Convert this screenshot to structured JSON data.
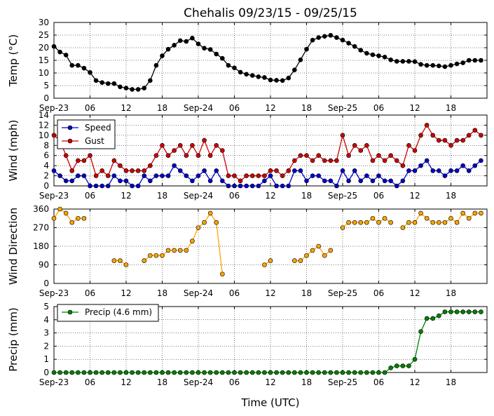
{
  "title": "Chehalis 09/23/15 - 09/25/15",
  "xlabel": "Time (UTC)",
  "x_tick_labels": [
    "Sep-23",
    "06",
    "12",
    "18",
    "Sep-24",
    "06",
    "12",
    "18",
    "Sep-25",
    "06",
    "12",
    "18"
  ],
  "chart_data": [
    {
      "type": "line",
      "ylabel": "Temp (°C)",
      "ylim": [
        0,
        30
      ],
      "yticks": [
        0,
        5,
        10,
        15,
        20,
        25,
        30
      ],
      "x_unit": "hours since Sep-23 00:00 UTC",
      "x_step_hours": 1,
      "grid": true,
      "series": [
        {
          "color": "#000000",
          "values": [
            20.5,
            18.3,
            17.1,
            13.0,
            13.0,
            11.9,
            10.2,
            7.0,
            6.2,
            5.8,
            5.8,
            4.5,
            4.0,
            3.5,
            3.5,
            4.0,
            7.0,
            13.0,
            16.8,
            19.4,
            21.0,
            22.8,
            22.5,
            23.8,
            21.5,
            19.8,
            19.3,
            17.5,
            15.8,
            13.0,
            12.0,
            10.3,
            9.5,
            9.0,
            8.5,
            8.2,
            7.2,
            7.1,
            7.0,
            8.0,
            11.2,
            15.2,
            19.4,
            23.0,
            24.0,
            24.5,
            24.9,
            24.0,
            23.0,
            21.8,
            20.5,
            19.0,
            17.8,
            17.2,
            16.8,
            16.3,
            15.2,
            14.6,
            14.6,
            14.6,
            14.5,
            13.4,
            13.0,
            13.0,
            12.8,
            12.5,
            13.0,
            13.6,
            14.0,
            15.0,
            15.0,
            15.0
          ]
        }
      ]
    },
    {
      "type": "line",
      "ylabel": "Wind (mph)",
      "ylim": [
        0,
        14
      ],
      "yticks": [
        0,
        2,
        4,
        6,
        8,
        10,
        12,
        14
      ],
      "x_unit": "hours since Sep-23 00:00 UTC",
      "x_step_hours": 1,
      "grid": true,
      "legend_position": "upper-left",
      "series": [
        {
          "name": "Speed",
          "color": "#0000cc",
          "values": [
            3,
            2,
            1,
            1,
            2,
            2,
            0,
            0,
            0,
            0,
            2,
            1,
            1,
            0,
            0,
            2,
            1,
            2,
            2,
            2,
            4,
            3,
            2,
            1,
            2,
            3,
            1,
            3,
            1,
            0,
            0,
            0,
            0,
            0,
            0,
            1,
            2,
            0,
            0,
            0,
            3,
            3,
            1,
            2,
            2,
            1,
            1,
            0,
            3,
            1,
            3,
            1,
            2,
            1,
            2,
            1,
            1,
            0,
            1,
            3,
            3,
            4,
            5,
            3,
            3,
            2,
            3,
            3,
            4,
            3,
            4,
            5
          ]
        },
        {
          "name": "Gust",
          "color": "#cc0000",
          "values": [
            10,
            9,
            6,
            3,
            5,
            5,
            6,
            2,
            3,
            2,
            5,
            4,
            3,
            3,
            3,
            3,
            4,
            6,
            8,
            6,
            7,
            8,
            6,
            8,
            6,
            9,
            6,
            8,
            7,
            2,
            2,
            1,
            2,
            2,
            2,
            2,
            3,
            3,
            2,
            3,
            5,
            6,
            6,
            5,
            6,
            5,
            5,
            5,
            10,
            6,
            8,
            7,
            8,
            5,
            6,
            5,
            6,
            5,
            4,
            8,
            7,
            10,
            12,
            10,
            9,
            9,
            8,
            9,
            9,
            10,
            11,
            10
          ]
        }
      ]
    },
    {
      "type": "scatter",
      "ylabel": "Wind Direction",
      "ylim": [
        0,
        360
      ],
      "yticks": [
        0,
        90,
        180,
        270,
        360
      ],
      "x_unit": "hours since Sep-23 00:00 UTC",
      "grid": true,
      "series": [
        {
          "color": "#ffa500",
          "segments": [
            {
              "x": [
                0,
                1,
                2,
                3,
                4,
                5
              ],
              "y": [
                315,
                360,
                340,
                295,
                315,
                315
              ]
            },
            {
              "x": [
                10,
                11,
                12
              ],
              "y": [
                110,
                110,
                90
              ]
            },
            {
              "x": [
                15,
                16,
                17,
                18,
                19,
                20,
                21,
                22,
                23,
                24,
                25,
                26,
                27,
                28
              ],
              "y": [
                110,
                135,
                135,
                135,
                160,
                160,
                160,
                160,
                205,
                270,
                295,
                340,
                295,
                45
              ]
            },
            {
              "x": [
                35,
                36
              ],
              "y": [
                90,
                110
              ]
            },
            {
              "x": [
                40,
                41,
                42,
                43,
                44,
                45,
                46
              ],
              "y": [
                110,
                110,
                135,
                160,
                180,
                135,
                160
              ]
            },
            {
              "x": [
                48,
                49,
                50,
                51,
                52,
                53,
                54,
                55,
                56
              ],
              "y": [
                270,
                295,
                295,
                295,
                295,
                315,
                295,
                315,
                295
              ]
            },
            {
              "x": [
                58,
                59,
                60,
                61,
                62,
                63,
                64,
                65,
                66,
                67,
                68,
                69,
                70,
                71
              ],
              "y": [
                270,
                295,
                295,
                340,
                315,
                295,
                295,
                295,
                315,
                295,
                340,
                315,
                340,
                340
              ]
            }
          ]
        }
      ]
    },
    {
      "type": "line",
      "ylabel": "Precip (mm)",
      "ylim": [
        0,
        5
      ],
      "yticks": [
        0,
        1,
        2,
        3,
        4,
        5
      ],
      "x_unit": "hours since Sep-23 00:00 UTC",
      "x_step_hours": 1,
      "grid": true,
      "legend_position": "upper-left",
      "series": [
        {
          "name": "Precip (4.6 mm)",
          "color": "#008000",
          "values": [
            0,
            0,
            0,
            0,
            0,
            0,
            0,
            0,
            0,
            0,
            0,
            0,
            0,
            0,
            0,
            0,
            0,
            0,
            0,
            0,
            0,
            0,
            0,
            0,
            0,
            0,
            0,
            0,
            0,
            0,
            0,
            0,
            0,
            0,
            0,
            0,
            0,
            0,
            0,
            0,
            0,
            0,
            0,
            0,
            0,
            0,
            0,
            0,
            0,
            0,
            0,
            0,
            0,
            0,
            0,
            0,
            0.35,
            0.5,
            0.5,
            0.5,
            1.0,
            3.1,
            4.1,
            4.1,
            4.3,
            4.6,
            4.6,
            4.6,
            4.6,
            4.6,
            4.6,
            4.6
          ]
        }
      ]
    }
  ]
}
